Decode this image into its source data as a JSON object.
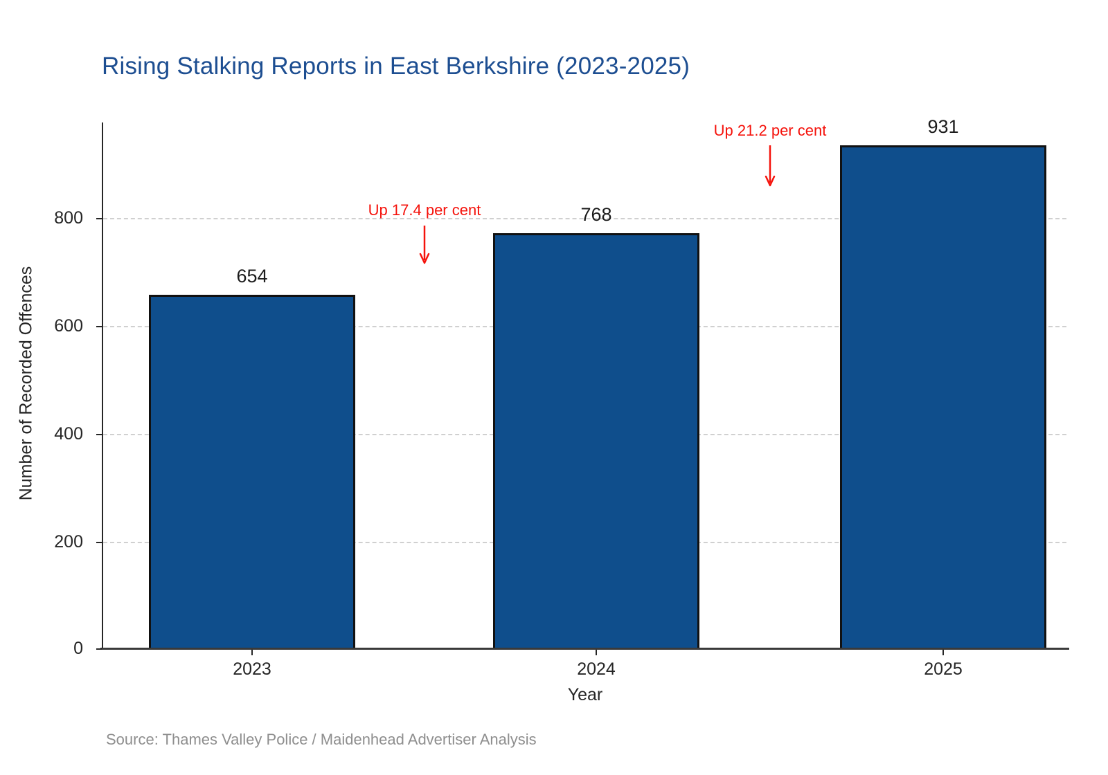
{
  "title": "Rising Stalking Reports in East Berkshire (2023-2025)",
  "source_note": "Source: Thames Valley Police / Maidenhead Advertiser Analysis",
  "chart_data": {
    "type": "bar",
    "title": "Rising Stalking Reports in East Berkshire (2023-2025)",
    "categories": [
      "2023",
      "2024",
      "2025"
    ],
    "values": [
      654,
      768,
      931
    ],
    "value_labels": [
      "654",
      "768",
      "931"
    ],
    "xlabel": "Year",
    "ylabel": "Number of Recorded Offences",
    "ylim": [
      0,
      975
    ],
    "yticks": [
      "0",
      "200",
      "400",
      "600",
      "800"
    ],
    "grid": "horizontal dashed gridlines at 200 intervals",
    "legend": "none",
    "bar_color": "#0f4e8c",
    "bar_edge_color": "#111111",
    "title_color": "#1d4e91",
    "annotation_color": "#f5120b",
    "annotations": [
      {
        "text": "Up 17.4 per cent",
        "between": [
          "2023",
          "2024"
        ],
        "arrow": "down"
      },
      {
        "text": "Up 21.2 per cent",
        "between": [
          "2024",
          "2025"
        ],
        "arrow": "down"
      }
    ],
    "source": "Source: Thames Valley Police / Maidenhead Advertiser Analysis"
  }
}
